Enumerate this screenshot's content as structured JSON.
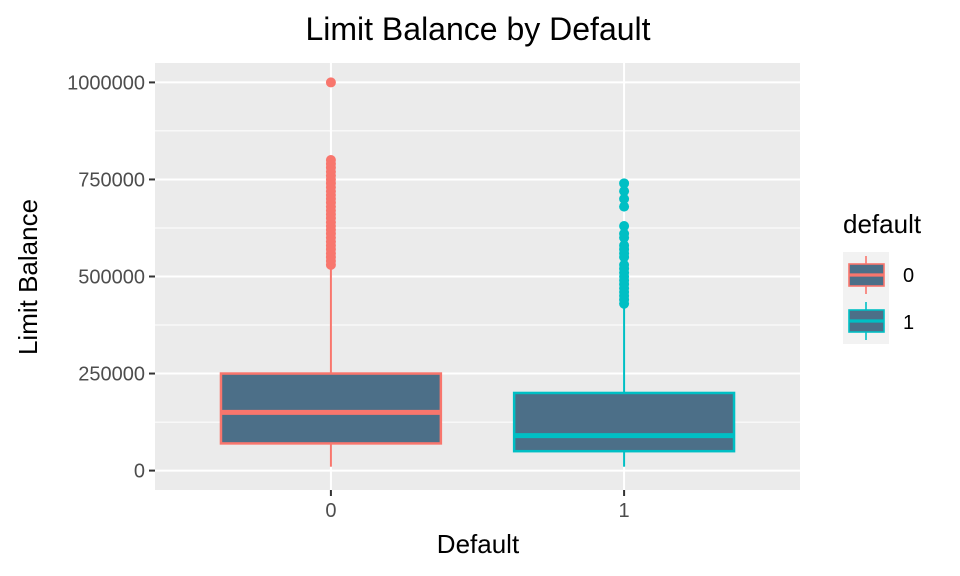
{
  "chart_data": {
    "type": "boxplot",
    "title": "Limit Balance by Default",
    "xlabel": "Default",
    "ylabel": "Limit Balance",
    "categories": [
      "0",
      "1"
    ],
    "ylim": [
      -50000,
      1050000
    ],
    "yticks": [
      0,
      250000,
      500000,
      750000,
      1000000
    ],
    "ytick_labels": [
      "0",
      "250000",
      "500000",
      "750000",
      "1000000"
    ],
    "grid": true,
    "box_fill": "#4c6f88",
    "panel_background": "#ebebeb",
    "grid_color": "#ffffff",
    "series": [
      {
        "name": "0",
        "color": "#f8766d",
        "whisker_low": 10000,
        "q1": 70000,
        "median": 150000,
        "q3": 250000,
        "whisker_high": 520000,
        "outliers": [
          1000000,
          800000,
          790000,
          780000,
          770000,
          760000,
          750000,
          740000,
          730000,
          720000,
          710000,
          700000,
          690000,
          680000,
          670000,
          660000,
          650000,
          640000,
          630000,
          620000,
          610000,
          600000,
          590000,
          580000,
          570000,
          560000,
          550000,
          540000,
          530000
        ]
      },
      {
        "name": "1",
        "color": "#00bfc4",
        "whisker_low": 10000,
        "q1": 50000,
        "median": 90000,
        "q3": 200000,
        "whisker_high": 420000,
        "outliers": [
          740000,
          720000,
          700000,
          680000,
          630000,
          610000,
          600000,
          580000,
          570000,
          560000,
          550000,
          530000,
          520000,
          510000,
          500000,
          490000,
          480000,
          470000,
          460000,
          450000,
          440000,
          430000
        ]
      }
    ]
  },
  "legend": {
    "title": "default",
    "items": [
      "0",
      "1"
    ]
  }
}
